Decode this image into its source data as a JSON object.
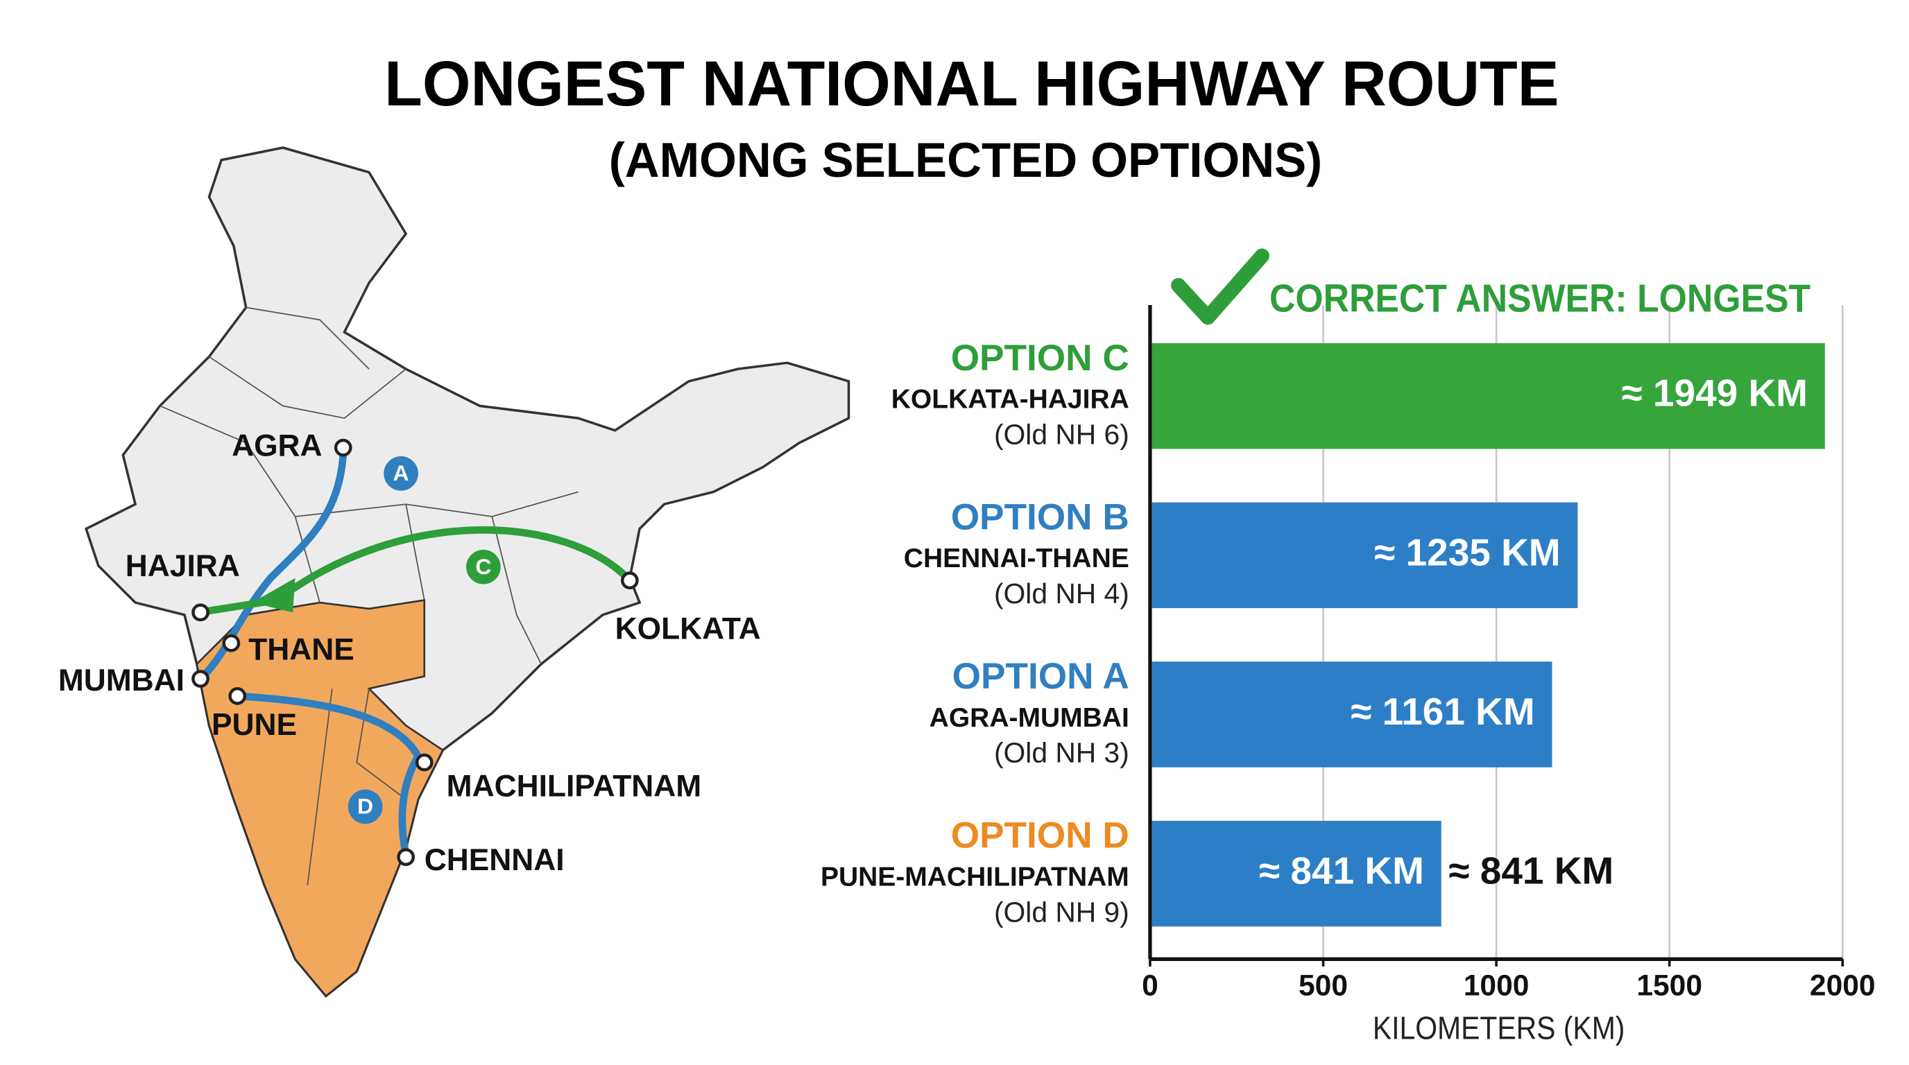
{
  "chart_data": {
    "type": "bar",
    "orientation": "horizontal",
    "title": "LONGEST NATIONAL HIGHWAY ROUTE",
    "subtitle": "(AMONG SELECTED OPTIONS)",
    "annotation": "CORRECT ANSWER: LONGEST",
    "categories": [
      "OPTION C",
      "OPTION B",
      "OPTION A",
      "OPTION D"
    ],
    "routes": [
      "KOLKATA-HAJIRA",
      "CHENNAI-THANE",
      "AGRA-MUMBAI",
      "PUNE-MACHILIPATNAM"
    ],
    "old_names": [
      "(Old NH 6)",
      "(Old NH 4)",
      "(Old NH 3)",
      "(Old NH 9)"
    ],
    "category_colors": [
      "#2e9e3a",
      "#2f7fc1",
      "#2f7fc1",
      "#ee8a1f"
    ],
    "values": [
      1949,
      1235,
      1161,
      841
    ],
    "value_labels": [
      "≈ 1949 KM",
      "≈ 1235 KM",
      "≈ 1161 KM",
      "≈ 841 KM"
    ],
    "bar_colors": [
      "#36a53c",
      "#2c7fc6",
      "#2c7fc6",
      "#2c7fc6"
    ],
    "xlim": [
      0,
      2000
    ],
    "xticks": [
      0,
      500,
      1000,
      1500,
      2000
    ],
    "xlabel": "KILOMETERS (KM)",
    "grid": true
  },
  "map": {
    "cities": [
      "AGRA",
      "HAJIRA",
      "THANE",
      "MUMBAI",
      "PUNE",
      "KOLKATA",
      "MACHILIPATNAM",
      "CHENNAI"
    ],
    "route_markers": [
      "A",
      "C",
      "D"
    ]
  }
}
